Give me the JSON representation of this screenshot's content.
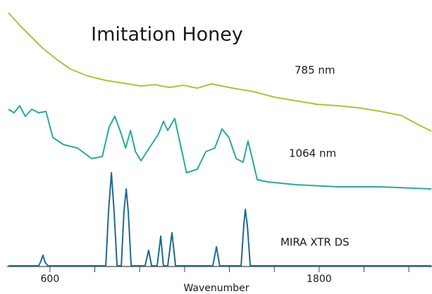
{
  "chart_data": {
    "type": "line",
    "title": "Imitation Honey",
    "xlabel": "Wavenumber",
    "xlim": [
      415,
      2300
    ],
    "ylim": [
      0,
      380
    ],
    "xticks": [
      600,
      1800
    ],
    "xminor_ticks": [
      800,
      1000,
      1200,
      1400,
      1600,
      2000,
      2200
    ],
    "series": [
      {
        "name": "785 nm",
        "color": "#a8c43a",
        "x": [
          415,
          472,
          566,
          629,
          691,
          770,
          849,
          927,
          1006,
          1068,
          1131,
          1194,
          1257,
          1320,
          1414,
          1508,
          1603,
          1697,
          1791,
          1885,
          1979,
          2074,
          2168,
          2231,
          2300
        ],
        "values": [
          362,
          342,
          312,
          296,
          282,
          272,
          266,
          262,
          258,
          260,
          256,
          259,
          255,
          261,
          255,
          250,
          242,
          237,
          232,
          230,
          227,
          222,
          216,
          205,
          194
        ]
      },
      {
        "name": "1064 nm",
        "color": "#2ba89c",
        "x": [
          415,
          440,
          465,
          490,
          519,
          550,
          582,
          613,
          660,
          723,
          786,
          833,
          864,
          889,
          918,
          937,
          959,
          981,
          1006,
          1053,
          1084,
          1106,
          1125,
          1156,
          1178,
          1209,
          1257,
          1295,
          1335,
          1367,
          1398,
          1430,
          1461,
          1483,
          1502,
          1524,
          1571,
          1697,
          1885,
          2074,
          2300
        ],
        "values": [
          225,
          220,
          230,
          215,
          225,
          220,
          222,
          185,
          175,
          170,
          155,
          158,
          200,
          215,
          190,
          170,
          195,
          165,
          152,
          175,
          190,
          208,
          195,
          212,
          180,
          135,
          140,
          165,
          170,
          197,
          185,
          155,
          150,
          180,
          155,
          125,
          122,
          118,
          115,
          115,
          112
        ]
      },
      {
        "name": "MIRA XTR DS",
        "color": "#1f6b8c",
        "x": [
          415,
          550,
          560,
          569,
          578,
          591,
          849,
          861,
          874,
          886,
          899,
          918,
          930,
          940,
          949,
          962,
          1024,
          1040,
          1053,
          1078,
          1094,
          1106,
          1125,
          1144,
          1160,
          1326,
          1342,
          1357,
          1452,
          1464,
          1471,
          1480,
          1493,
          2300
        ],
        "values": [
          3,
          3,
          10,
          18,
          8,
          3,
          3,
          80,
          135,
          80,
          3,
          3,
          80,
          112,
          80,
          3,
          3,
          25,
          3,
          3,
          45,
          3,
          3,
          50,
          3,
          3,
          30,
          3,
          3,
          60,
          83,
          60,
          3,
          3
        ]
      }
    ]
  }
}
